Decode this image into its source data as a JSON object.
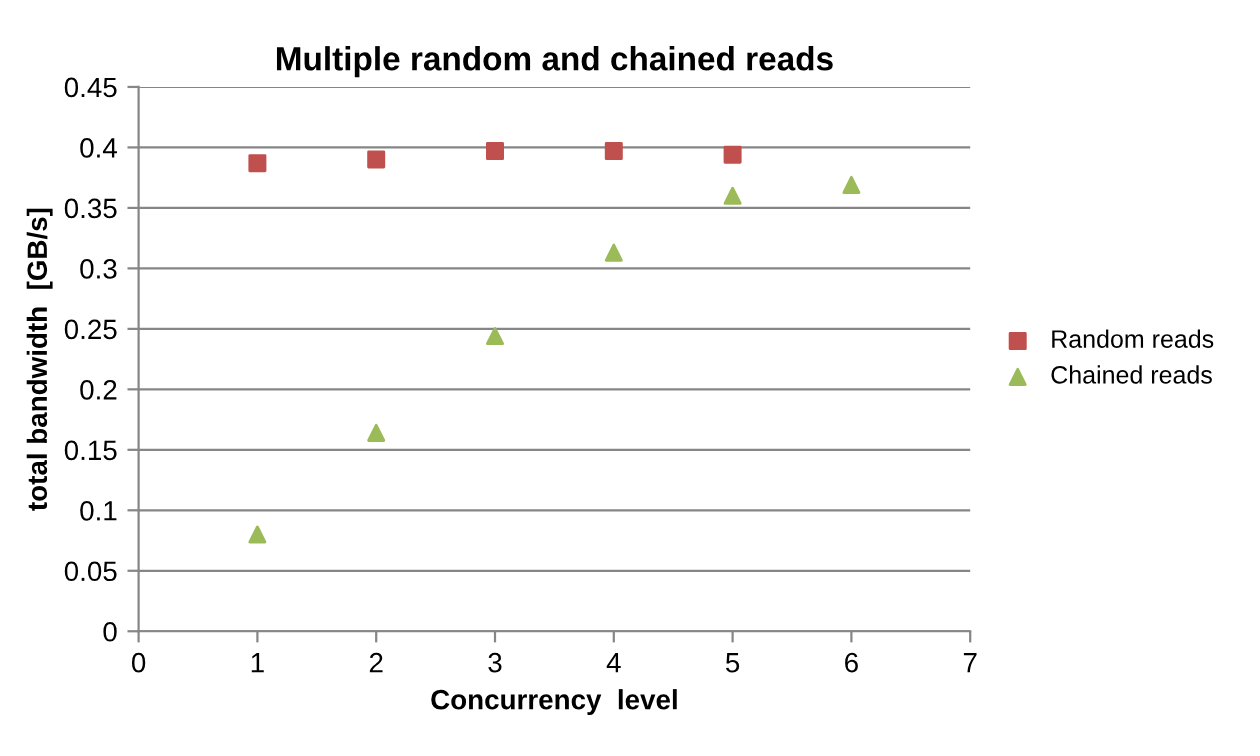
{
  "chart_data": {
    "type": "scatter",
    "title": "Multiple random and chained reads",
    "xlabel": "Concurrency  level",
    "ylabel": "total bandwidth  [GB/s]",
    "series": [
      {
        "name": "Random reads",
        "color": "#c0504d",
        "marker": "square",
        "x": [
          1,
          2,
          3,
          4,
          5
        ],
        "values": [
          0.387,
          0.39,
          0.397,
          0.397,
          0.394
        ]
      },
      {
        "name": "Chained reads",
        "color": "#9bbb59",
        "marker": "triangle",
        "x": [
          1,
          2,
          3,
          4,
          5,
          6
        ],
        "values": [
          0.08,
          0.164,
          0.244,
          0.313,
          0.36,
          0.369
        ]
      }
    ],
    "xlim": [
      0,
      7
    ],
    "xticks": [
      0,
      1,
      2,
      3,
      4,
      5,
      6,
      7
    ],
    "ylim": [
      0,
      0.45
    ],
    "yticks": [
      0,
      0.05,
      0.1,
      0.15,
      0.2,
      0.25,
      0.3,
      0.35,
      0.4,
      0.45
    ],
    "grid": "y",
    "legend": "right"
  }
}
